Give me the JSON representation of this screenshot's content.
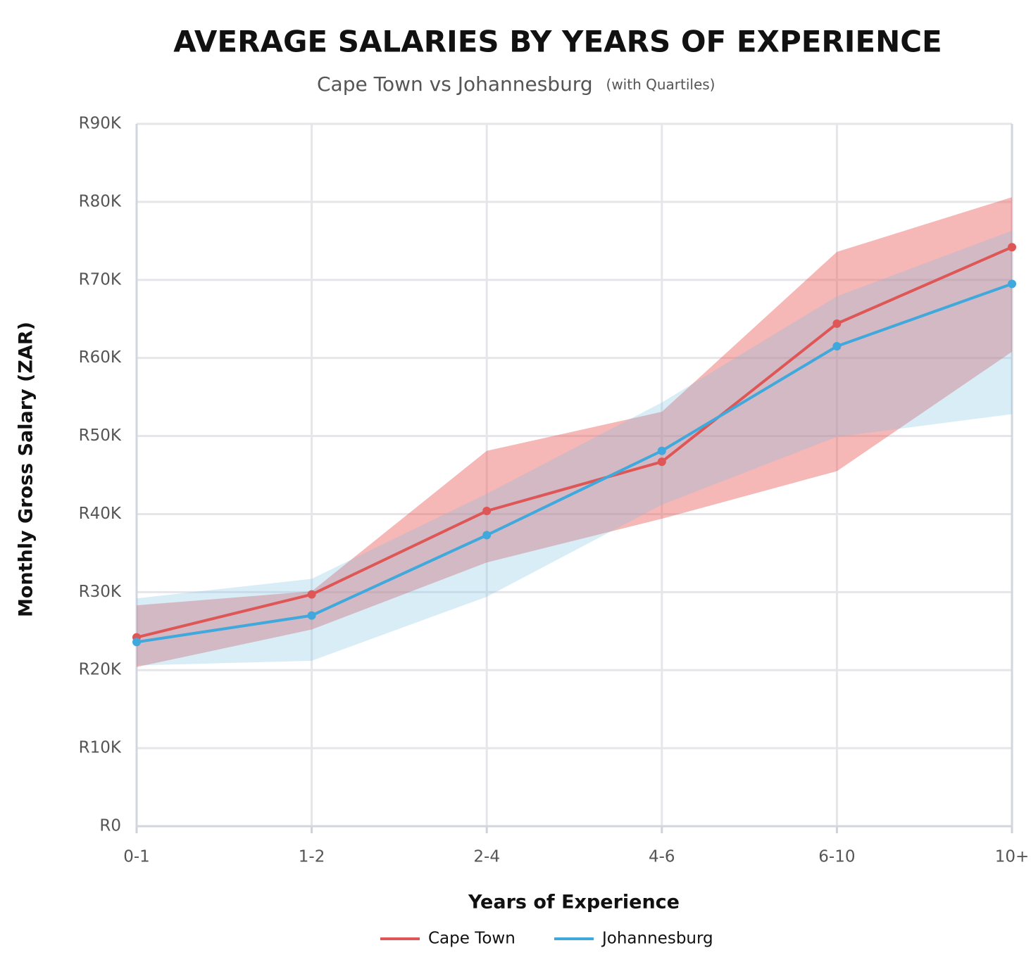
{
  "chart_data": {
    "type": "line",
    "title": "AVERAGE SALARIES BY YEARS OF EXPERIENCE",
    "subtitle": "Cape Town vs Johannesburg",
    "subtitle_note": "(with Quartiles)",
    "x_label": "Years of Experience",
    "y_label": "Monthly Gross Salary (ZAR)",
    "categories": [
      "0-1",
      "1-2",
      "2-4",
      "4-6",
      "6-10",
      "10+"
    ],
    "series": [
      {
        "name": "Cape Town",
        "color": "#de5656",
        "band_color": "rgba(236,96,96,0.45)",
        "values": [
          24200,
          29700,
          40400,
          46700,
          64400,
          74200
        ],
        "lower": [
          20400,
          25200,
          33800,
          39400,
          45500,
          60800
        ],
        "upper": [
          28300,
          30100,
          48100,
          53100,
          73600,
          80600
        ]
      },
      {
        "name": "Johannesburg",
        "color": "#3fa8dc",
        "band_color": "rgba(120,190,228,0.28)",
        "values": [
          23600,
          27000,
          37300,
          48100,
          61500,
          69500
        ],
        "lower": [
          20600,
          21200,
          29400,
          41200,
          49900,
          52800
        ],
        "upper": [
          29200,
          31700,
          42600,
          54300,
          67900,
          76300
        ]
      }
    ],
    "ylim": [
      0,
      90000
    ],
    "yticks": [
      {
        "value": 0,
        "label": "R0"
      },
      {
        "value": 10000,
        "label": "R10K"
      },
      {
        "value": 20000,
        "label": "R20K"
      },
      {
        "value": 30000,
        "label": "R30K"
      },
      {
        "value": 40000,
        "label": "R40K"
      },
      {
        "value": 50000,
        "label": "R50K"
      },
      {
        "value": 60000,
        "label": "R60K"
      },
      {
        "value": 70000,
        "label": "R70K"
      },
      {
        "value": 80000,
        "label": "R80K"
      },
      {
        "value": 90000,
        "label": "R90K"
      }
    ],
    "grid": true,
    "legend": "bottom"
  }
}
